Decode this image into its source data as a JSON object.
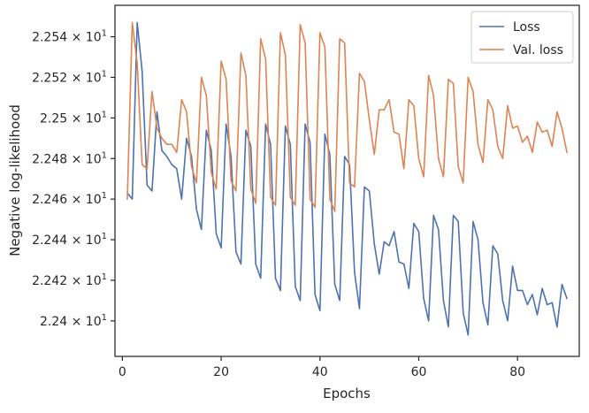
{
  "chart_data": {
    "type": "line",
    "xlabel": "Epochs",
    "ylabel": "Negative log-likelihood",
    "xlim": [
      -1.5,
      92.5
    ],
    "ylim": [
      22.3825,
      22.5555
    ],
    "x_ticks": [
      0,
      20,
      40,
      60,
      80
    ],
    "x_tick_labels": [
      "0",
      "20",
      "40",
      "60",
      "80"
    ],
    "y_ticks": [
      22.4,
      22.42,
      22.44,
      22.46,
      22.48,
      22.5,
      22.52,
      22.54
    ],
    "y_tick_mantissas": [
      "2.24",
      "2.242",
      "2.244",
      "2.246",
      "2.248",
      "2.25",
      "2.252",
      "2.254"
    ],
    "y_tick_base": "× 10",
    "y_tick_exponent": "1",
    "grid": false,
    "legend_position": "top-right",
    "series": [
      {
        "name": "Loss",
        "color": "#4c72b0",
        "x": [
          1,
          2,
          3,
          4,
          5,
          6,
          7,
          8,
          9,
          10,
          11,
          12,
          13,
          14,
          15,
          16,
          17,
          18,
          19,
          20,
          21,
          22,
          23,
          24,
          25,
          26,
          27,
          28,
          29,
          30,
          31,
          32,
          33,
          34,
          35,
          36,
          37,
          38,
          39,
          40,
          41,
          42,
          43,
          44,
          45,
          46,
          47,
          48,
          49,
          50,
          51,
          52,
          53,
          54,
          55,
          56,
          57,
          58,
          59,
          60,
          61,
          62,
          63,
          64,
          65,
          66,
          67,
          68,
          69,
          70,
          71,
          72,
          73,
          74,
          75,
          76,
          77,
          78,
          79,
          80,
          81,
          82,
          83,
          84,
          85,
          86,
          87,
          88,
          89,
          90
        ],
        "y": [
          22.463,
          22.46,
          22.547,
          22.523,
          22.467,
          22.464,
          22.503,
          22.484,
          22.481,
          22.477,
          22.475,
          22.46,
          22.49,
          22.481,
          22.455,
          22.445,
          22.494,
          22.484,
          22.443,
          22.436,
          22.497,
          22.481,
          22.434,
          22.428,
          22.494,
          22.486,
          22.428,
          22.421,
          22.497,
          22.487,
          22.421,
          22.415,
          22.496,
          22.487,
          22.417,
          22.41,
          22.497,
          22.488,
          22.413,
          22.405,
          22.492,
          22.482,
          22.418,
          22.41,
          22.481,
          22.477,
          22.424,
          22.406,
          22.466,
          22.464,
          22.438,
          22.423,
          22.439,
          22.437,
          22.444,
          22.429,
          22.428,
          22.416,
          22.448,
          22.444,
          22.411,
          22.4,
          22.452,
          22.445,
          22.41,
          22.397,
          22.452,
          22.449,
          22.404,
          22.393,
          22.449,
          22.44,
          22.409,
          22.398,
          22.437,
          22.433,
          22.41,
          22.4,
          22.427,
          22.415,
          22.415,
          22.408,
          22.413,
          22.403,
          22.416,
          22.408,
          22.409,
          22.397,
          22.418,
          22.411
        ]
      },
      {
        "name": "Val. loss",
        "color": "#dd8452",
        "x": [
          1,
          2,
          3,
          4,
          5,
          6,
          7,
          8,
          9,
          10,
          11,
          12,
          13,
          14,
          15,
          16,
          17,
          18,
          19,
          20,
          21,
          22,
          23,
          24,
          25,
          26,
          27,
          28,
          29,
          30,
          31,
          32,
          33,
          34,
          35,
          36,
          37,
          38,
          39,
          40,
          41,
          42,
          43,
          44,
          45,
          46,
          47,
          48,
          49,
          50,
          51,
          52,
          53,
          54,
          55,
          56,
          57,
          58,
          59,
          60,
          61,
          62,
          63,
          64,
          65,
          66,
          67,
          68,
          69,
          70,
          71,
          72,
          73,
          74,
          75,
          76,
          77,
          78,
          79,
          80,
          81,
          82,
          83,
          84,
          85,
          86,
          87,
          88,
          89,
          90
        ],
        "y": [
          22.46,
          22.547,
          22.527,
          22.477,
          22.475,
          22.513,
          22.495,
          22.49,
          22.487,
          22.487,
          22.483,
          22.509,
          22.503,
          22.476,
          22.468,
          22.52,
          22.511,
          22.473,
          22.465,
          22.528,
          22.519,
          22.469,
          22.464,
          22.532,
          22.521,
          22.465,
          22.458,
          22.539,
          22.529,
          22.461,
          22.457,
          22.542,
          22.531,
          22.461,
          22.457,
          22.546,
          22.537,
          22.46,
          22.456,
          22.542,
          22.535,
          22.46,
          22.454,
          22.539,
          22.537,
          22.468,
          22.466,
          22.522,
          22.518,
          22.499,
          22.482,
          22.504,
          22.504,
          22.509,
          22.493,
          22.492,
          22.475,
          22.509,
          22.506,
          22.48,
          22.471,
          22.521,
          22.511,
          22.48,
          22.471,
          22.519,
          22.517,
          22.476,
          22.468,
          22.52,
          22.513,
          22.487,
          22.478,
          22.509,
          22.504,
          22.486,
          22.48,
          22.506,
          22.495,
          22.496,
          22.488,
          22.491,
          22.483,
          22.498,
          22.493,
          22.494,
          22.486,
          22.503,
          22.495,
          22.483
        ]
      }
    ]
  }
}
